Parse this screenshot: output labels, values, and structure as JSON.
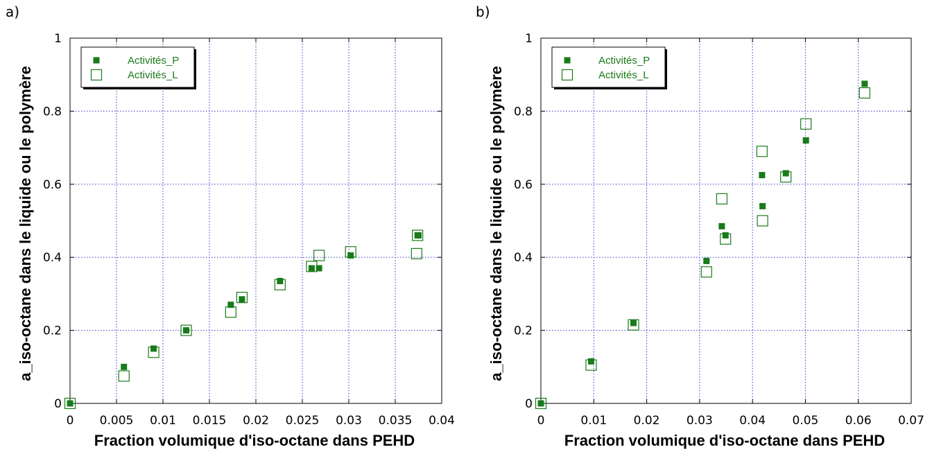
{
  "chart_data": [
    {
      "type": "scatter",
      "panel_label": "a)",
      "title": "",
      "xlabel": "Fraction volumique d'iso-octane dans PEHD",
      "ylabel": "a_iso-octane dans le liquide ou le polymère",
      "xlim": [
        0,
        0.04
      ],
      "ylim": [
        0,
        1
      ],
      "xticks": [
        0,
        0.005,
        0.01,
        0.015,
        0.02,
        0.025,
        0.03,
        0.035,
        0.04
      ],
      "xtick_labels": [
        "0",
        "0.005",
        "0.01",
        "0.015",
        "0.02",
        "0.025",
        "0.03",
        "0.035",
        "0.04"
      ],
      "yticks": [
        0,
        0.2,
        0.4,
        0.6,
        0.8,
        1
      ],
      "ytick_labels": [
        "0",
        "0.2",
        "0.4",
        "0.6",
        "0.8",
        "1"
      ],
      "grid": true,
      "legend_position": "top-left",
      "series": [
        {
          "name": "Activités_P",
          "marker": "filled-square",
          "color": "#1a7a1a",
          "x": [
            0,
            0.0058,
            0.009,
            0.0125,
            0.0173,
            0.0185,
            0.0226,
            0.026,
            0.0268,
            0.0302,
            0.0374,
            0.0375
          ],
          "y": [
            0.0,
            0.1,
            0.15,
            0.2,
            0.27,
            0.285,
            0.335,
            0.37,
            0.37,
            0.405,
            0.46,
            0.46
          ]
        },
        {
          "name": "Activités_L",
          "marker": "open-square",
          "color": "#1a7a1a",
          "x": [
            0,
            0.0058,
            0.009,
            0.0125,
            0.0173,
            0.0185,
            0.0226,
            0.026,
            0.0268,
            0.0302,
            0.0373,
            0.0374
          ],
          "y": [
            0.0,
            0.075,
            0.14,
            0.2,
            0.25,
            0.29,
            0.325,
            0.375,
            0.405,
            0.415,
            0.41,
            0.46
          ]
        }
      ]
    },
    {
      "type": "scatter",
      "panel_label": "b)",
      "title": "",
      "xlabel": "Fraction volumique d'iso-octane dans PEHD",
      "ylabel": "a_iso-octane dans le liquide ou le polymère",
      "xlim": [
        0,
        0.07
      ],
      "ylim": [
        0,
        1
      ],
      "xticks": [
        0,
        0.01,
        0.02,
        0.03,
        0.04,
        0.05,
        0.06,
        0.07
      ],
      "xtick_labels": [
        "0",
        "0.01",
        "0.02",
        "0.03",
        "0.04",
        "0.05",
        "0.06",
        "0.07"
      ],
      "yticks": [
        0,
        0.2,
        0.4,
        0.6,
        0.8,
        1
      ],
      "ytick_labels": [
        "0",
        "0.2",
        "0.4",
        "0.6",
        "0.8",
        "1"
      ],
      "grid": true,
      "legend_position": "top-left",
      "series": [
        {
          "name": "Activités_P",
          "marker": "filled-square",
          "color": "#1a7a1a",
          "x": [
            0,
            0.0095,
            0.0175,
            0.0313,
            0.0342,
            0.0349,
            0.0418,
            0.0419,
            0.0463,
            0.0501,
            0.0612
          ],
          "y": [
            0.0,
            0.115,
            0.22,
            0.39,
            0.485,
            0.46,
            0.625,
            0.54,
            0.63,
            0.72,
            0.875
          ]
        },
        {
          "name": "Activités_L",
          "marker": "open-square",
          "color": "#1a7a1a",
          "x": [
            0,
            0.0095,
            0.0175,
            0.0313,
            0.0342,
            0.0349,
            0.0418,
            0.0419,
            0.0463,
            0.0501,
            0.0612
          ],
          "y": [
            0.0,
            0.105,
            0.215,
            0.36,
            0.56,
            0.45,
            0.69,
            0.5,
            0.62,
            0.765,
            0.85
          ]
        }
      ]
    }
  ]
}
